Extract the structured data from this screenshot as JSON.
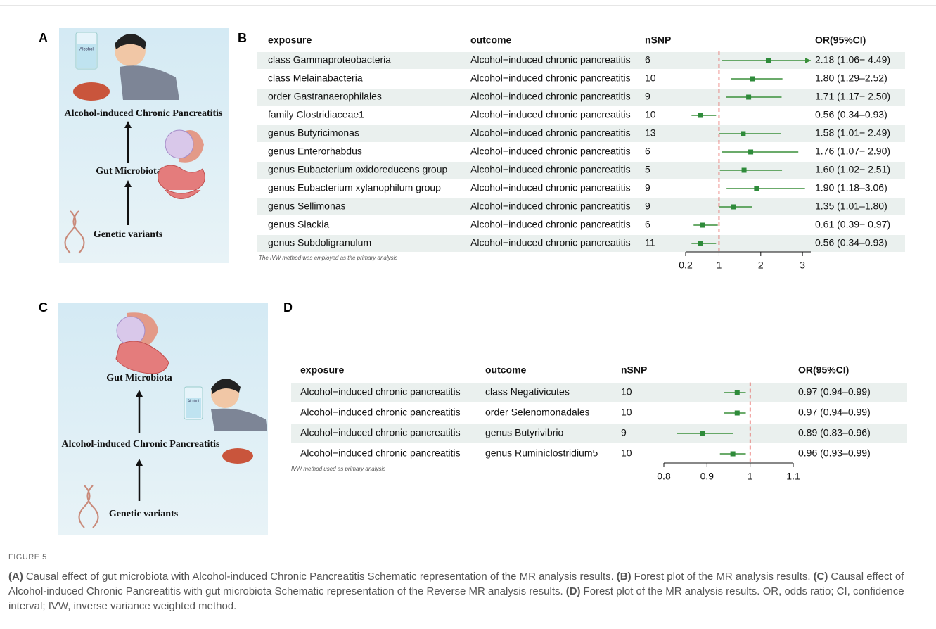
{
  "panels": [
    {
      "letter": "A",
      "labels": [
        "Alcohol-induced Chronic Pancreatitis",
        "Gut Microbiota",
        "Genetic variants"
      ],
      "glass_label": "Alcohol"
    },
    {
      "letter": "B",
      "type": "forest",
      "columns": [
        "exposure",
        "outcome",
        "nSNP",
        "OR(95%CI)"
      ],
      "rows": [
        {
          "exposure": "class Gammaproteobacteria",
          "outcome": "Alcohol−induced chronic pancreatitis",
          "nsnp": 6,
          "or": 2.18,
          "lower": 1.06,
          "upper": 4.49,
          "label": "2.18 (1.06− 4.49)"
        },
        {
          "exposure": "class Melainabacteria",
          "outcome": "Alcohol−induced chronic pancreatitis",
          "nsnp": 10,
          "or": 1.8,
          "lower": 1.29,
          "upper": 2.52,
          "label": "1.80 (1.29–2.52)"
        },
        {
          "exposure": "order Gastranaerophilales",
          "outcome": "Alcohol−induced chronic pancreatitis",
          "nsnp": 9,
          "or": 1.71,
          "lower": 1.17,
          "upper": 2.5,
          "label": "1.71 (1.17− 2.50)"
        },
        {
          "exposure": "family Clostridiaceae1",
          "outcome": "Alcohol−induced chronic pancreatitis",
          "nsnp": 10,
          "or": 0.56,
          "lower": 0.34,
          "upper": 0.93,
          "label": "0.56 (0.34–0.93)"
        },
        {
          "exposure": "genus Butyricimonas",
          "outcome": "Alcohol−induced chronic pancreatitis",
          "nsnp": 13,
          "or": 1.58,
          "lower": 1.01,
          "upper": 2.49,
          "label": "1.58 (1.01− 2.49)"
        },
        {
          "exposure": "genus Enterorhabdus",
          "outcome": "Alcohol−induced chronic pancreatitis",
          "nsnp": 6,
          "or": 1.76,
          "lower": 1.07,
          "upper": 2.9,
          "label": "1.76 (1.07− 2.90)"
        },
        {
          "exposure": "genus Eubacterium oxidoreducens group",
          "outcome": "Alcohol−induced chronic pancreatitis",
          "nsnp": 5,
          "or": 1.6,
          "lower": 1.02,
          "upper": 2.51,
          "label": "1.60 (1.02− 2.51)"
        },
        {
          "exposure": "genus Eubacterium xylanophilum group",
          "outcome": "Alcohol−induced chronic pancreatitis",
          "nsnp": 9,
          "or": 1.9,
          "lower": 1.18,
          "upper": 3.06,
          "label": "1.90 (1.18–3.06)"
        },
        {
          "exposure": "genus Sellimonas",
          "outcome": "Alcohol−induced chronic pancreatitis",
          "nsnp": 9,
          "or": 1.35,
          "lower": 1.01,
          "upper": 1.8,
          "label": "1.35 (1.01–1.80)"
        },
        {
          "exposure": "genus Slackia",
          "outcome": "Alcohol−induced chronic pancreatitis",
          "nsnp": 6,
          "or": 0.61,
          "lower": 0.39,
          "upper": 0.97,
          "label": "0.61 (0.39− 0.97)"
        },
        {
          "exposure": "genus Subdoligranulum",
          "outcome": "Alcohol−induced chronic pancreatitis",
          "nsnp": 11,
          "or": 0.56,
          "lower": 0.34,
          "upper": 0.93,
          "label": "0.56 (0.34–0.93)"
        }
      ],
      "xlim": [
        0.2,
        3.2
      ],
      "xticks": [
        0.2,
        1,
        2,
        3
      ],
      "ref": 1,
      "note": "The IVW method was employed as the primary analysis"
    },
    {
      "letter": "C",
      "labels": [
        "Gut Microbiota",
        "Alcohol-induced Chronic Pancreatitis",
        "Genetic variants"
      ],
      "glass_label": "Alcohol"
    },
    {
      "letter": "D",
      "type": "forest",
      "columns": [
        "exposure",
        "outcome",
        "nSNP",
        "OR(95%CI)"
      ],
      "rows": [
        {
          "exposure": "Alcohol−induced chronic pancreatitis",
          "outcome": "class Negativicutes",
          "nsnp": 10,
          "or": 0.97,
          "lower": 0.94,
          "upper": 0.99,
          "label": "0.97 (0.94–0.99)"
        },
        {
          "exposure": "Alcohol−induced chronic pancreatitis",
          "outcome": "order Selenomonadales",
          "nsnp": 10,
          "or": 0.97,
          "lower": 0.94,
          "upper": 0.99,
          "label": "0.97 (0.94–0.99)"
        },
        {
          "exposure": "Alcohol−induced chronic pancreatitis",
          "outcome": "genus Butyrivibrio",
          "nsnp": 9,
          "or": 0.89,
          "lower": 0.83,
          "upper": 0.96,
          "label": "0.89 (0.83–0.96)"
        },
        {
          "exposure": "Alcohol−induced chronic pancreatitis",
          "outcome": "genus Ruminiclostridium5",
          "nsnp": 10,
          "or": 0.96,
          "lower": 0.93,
          "upper": 0.99,
          "label": "0.96 (0.93–0.99)"
        }
      ],
      "xlim": [
        0.8,
        1.1
      ],
      "xticks": [
        0.8,
        0.9,
        1,
        1.1
      ],
      "ref": 1,
      "note": "IVW method used as primary analysis"
    }
  ],
  "caption": {
    "figure": "FIGURE 5",
    "parts": [
      {
        "label": "(A)",
        "text": "Causal effect of gut microbiota with Alcohol-induced Chronic Pancreatitis Schematic representation of the MR analysis results."
      },
      {
        "label": "(B)",
        "text": "Forest plot of the MR analysis results."
      },
      {
        "label": "(C)",
        "text": "Causal effect of Alcohol-induced Chronic Pancreatitis with gut microbiota Schematic representation of the Reverse MR analysis results."
      },
      {
        "label": "(D)",
        "text": "Forest plot of the MR analysis results. OR, odds ratio; CI, confidence interval; IVW, inverse variance weighted method."
      }
    ]
  }
}
